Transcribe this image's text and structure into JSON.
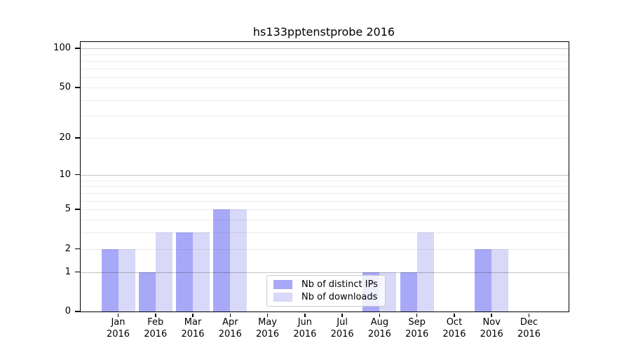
{
  "title": "hs133pptenstprobe 2016",
  "chart_data": {
    "type": "bar",
    "title": "hs133pptenstprobe 2016",
    "categories": [
      "Jan",
      "Feb",
      "Mar",
      "Apr",
      "May",
      "Jun",
      "Jul",
      "Aug",
      "Sep",
      "Oct",
      "Nov",
      "Dec"
    ],
    "category_year": "2016",
    "series": [
      {
        "name": "Nb of distinct IPs",
        "color": "#a8a8f8",
        "values": [
          2,
          1,
          3,
          5,
          0,
          0,
          0,
          1,
          1,
          0,
          2,
          0
        ]
      },
      {
        "name": "Nb of downloads",
        "color": "#d8d8f8",
        "values": [
          2,
          3,
          3,
          5,
          0,
          0,
          0,
          1,
          3,
          0,
          2,
          0
        ]
      }
    ],
    "yscale": "log10(1+value)",
    "ylim": [
      0,
      112
    ],
    "yticks": [
      0,
      1,
      2,
      5,
      10,
      20,
      50,
      100
    ],
    "major_gridlines": [
      1,
      10,
      100
    ],
    "minor_gridlines": [
      2,
      3,
      4,
      5,
      6,
      7,
      8,
      9,
      20,
      30,
      40,
      50,
      60,
      70,
      80,
      90
    ],
    "grid": true,
    "legend_position": "lower center, inside plot"
  },
  "colors": {
    "distinct_ips": "#a8a8f8",
    "downloads": "#d8d8f8",
    "major_grid": "#c2c2c2",
    "minor_grid": "#ececec",
    "axis": "#000000",
    "legend_border": "#cccccc",
    "background": "#ffffff"
  }
}
